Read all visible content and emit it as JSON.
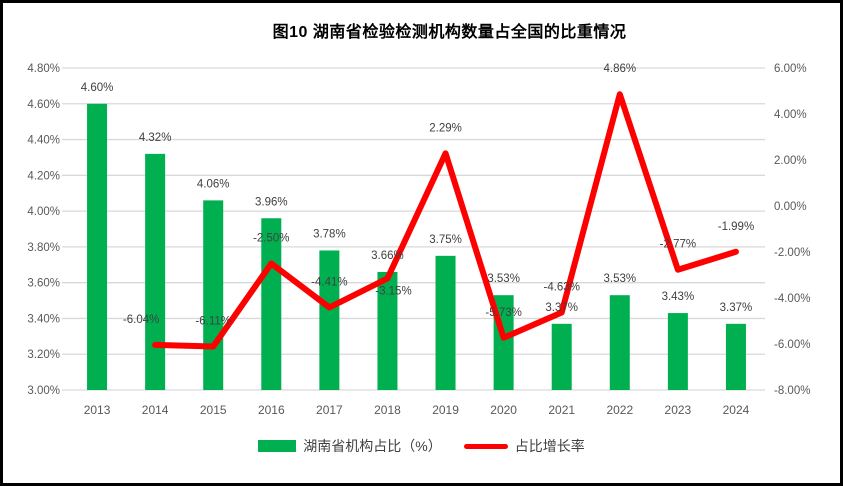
{
  "window": {
    "background": "#ffffff",
    "frame_color": "#000000"
  },
  "title": "图10  湖南省检验检测机构数量占全国的比重情况",
  "legend": {
    "bar_label": "湖南省机构占比（%）",
    "line_label": "占比增长率"
  },
  "colors": {
    "bar": "#00B050",
    "line": "#FF0000",
    "grid": "#D9D9D9",
    "axis_text": "#595959",
    "data_label": "#404040",
    "title_text": "#000000"
  },
  "chart_data": {
    "type": "bar+line combo",
    "title": "图10  湖南省检验检测机构数量占全国的比重情况",
    "categories": [
      "2013",
      "2014",
      "2015",
      "2016",
      "2017",
      "2018",
      "2019",
      "2020",
      "2021",
      "2022",
      "2023",
      "2024"
    ],
    "series": [
      {
        "name": "湖南省机构占比（%）",
        "type": "bar",
        "axis": "left",
        "color": "#00B050",
        "values": [
          4.6,
          4.32,
          4.06,
          3.96,
          3.78,
          3.66,
          3.75,
          3.53,
          3.37,
          3.53,
          3.43,
          3.37
        ],
        "labels": [
          "4.60%",
          "4.32%",
          "4.06%",
          "3.96%",
          "3.78%",
          "3.66%",
          "3.75%",
          "3.53%",
          "3.37%",
          "3.53%",
          "3.43%",
          "3.37%"
        ]
      },
      {
        "name": "占比增长率",
        "type": "line",
        "axis": "right",
        "color": "#FF0000",
        "values": [
          null,
          -6.04,
          -6.11,
          -2.5,
          -4.41,
          -3.15,
          2.29,
          -5.73,
          -4.63,
          4.86,
          -2.77,
          -1.99
        ],
        "labels": [
          null,
          "-6.04%",
          "-6.11%",
          "-2.50%",
          "-4.41%",
          "-3.15%",
          "2.29%",
          "-5.73%",
          "-4.63%",
          "4.86%",
          "-2.77%",
          "-1.99%"
        ]
      }
    ],
    "left_axis": {
      "min": 3.0,
      "max": 4.8,
      "step": 0.2,
      "tick_labels": [
        "4.80%",
        "4.60%",
        "4.40%",
        "4.20%",
        "4.00%",
        "3.80%",
        "3.60%",
        "3.40%",
        "3.20%",
        "3.00%"
      ]
    },
    "right_axis": {
      "min": -8.0,
      "max": 6.0,
      "step": 2.0,
      "tick_labels": [
        "6.00%",
        "4.00%",
        "2.00%",
        "0.00%",
        "-2.00%",
        "-4.00%",
        "-6.00%",
        "-8.00%"
      ]
    },
    "grid": true,
    "legend_position": "bottom"
  }
}
